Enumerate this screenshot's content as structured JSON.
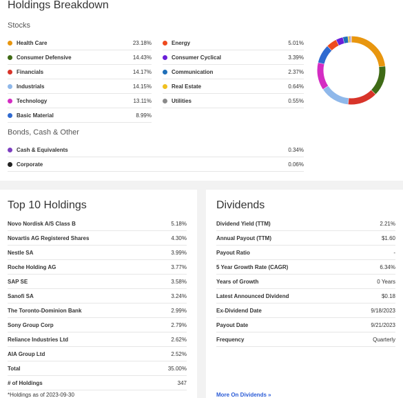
{
  "breakdown": {
    "title": "Holdings Breakdown",
    "stocks_heading": "Stocks",
    "stocks_left": [
      {
        "label": "Health Care",
        "value": "23.18%",
        "color": "#e8960f"
      },
      {
        "label": "Consumer Defensive",
        "value": "14.43%",
        "color": "#3f6b16"
      },
      {
        "label": "Financials",
        "value": "14.17%",
        "color": "#d8342a"
      },
      {
        "label": "Industrials",
        "value": "14.15%",
        "color": "#8fb8ea"
      },
      {
        "label": "Technology",
        "value": "13.11%",
        "color": "#d42cc3"
      },
      {
        "label": "Basic Material",
        "value": "8.99%",
        "color": "#2f6ad0"
      }
    ],
    "stocks_right": [
      {
        "label": "Energy",
        "value": "5.01%",
        "color": "#ee4a1e"
      },
      {
        "label": "Consumer Cyclical",
        "value": "3.39%",
        "color": "#6a1fd8"
      },
      {
        "label": "Communication",
        "value": "2.37%",
        "color": "#1f6fb8"
      },
      {
        "label": "Real Estate",
        "value": "0.64%",
        "color": "#f0c020"
      },
      {
        "label": "Utilities",
        "value": "0.55%",
        "color": "#8a8a8a"
      }
    ],
    "bonds_heading": "Bonds, Cash & Other",
    "bonds": [
      {
        "label": "Cash & Equivalents",
        "value": "0.34%",
        "color": "#7d3fc0"
      },
      {
        "label": "Corporate",
        "value": "0.06%",
        "color": "#222222"
      }
    ]
  },
  "chart_data": {
    "type": "pie",
    "categories": [
      "Health Care",
      "Consumer Defensive",
      "Financials",
      "Industrials",
      "Technology",
      "Basic Material",
      "Energy",
      "Consumer Cyclical",
      "Communication",
      "Real Estate",
      "Utilities",
      "Cash & Equivalents",
      "Corporate"
    ],
    "values": [
      23.18,
      14.43,
      14.17,
      14.15,
      13.11,
      8.99,
      5.01,
      3.39,
      2.37,
      0.64,
      0.55,
      0.34,
      0.06
    ],
    "colors": [
      "#e8960f",
      "#3f6b16",
      "#d8342a",
      "#8fb8ea",
      "#d42cc3",
      "#2f6ad0",
      "#ee4a1e",
      "#6a1fd8",
      "#1f6fb8",
      "#f0c020",
      "#8a8a8a",
      "#7d3fc0",
      "#222222"
    ]
  },
  "top10": {
    "title": "Top 10 Holdings",
    "rows": [
      {
        "label": "Novo Nordisk A/S Class B",
        "value": "5.18%"
      },
      {
        "label": "Novartis AG Registered Shares",
        "value": "4.30%"
      },
      {
        "label": "Nestle SA",
        "value": "3.99%"
      },
      {
        "label": "Roche Holding AG",
        "value": "3.77%"
      },
      {
        "label": "SAP SE",
        "value": "3.58%"
      },
      {
        "label": "Sanofi SA",
        "value": "3.24%"
      },
      {
        "label": "The Toronto-Dominion Bank",
        "value": "2.99%"
      },
      {
        "label": "Sony Group Corp",
        "value": "2.79%"
      },
      {
        "label": "Reliance Industries Ltd",
        "value": "2.62%"
      },
      {
        "label": "AIA Group Ltd",
        "value": "2.52%"
      },
      {
        "label": "Total",
        "value": "35.00%"
      },
      {
        "label": "# of Holdings",
        "value": "347"
      }
    ],
    "note": "*Holdings as of 2023-09-30"
  },
  "dividends": {
    "title": "Dividends",
    "rows": [
      {
        "label": "Dividend Yield (TTM)",
        "value": "2.21%"
      },
      {
        "label": "Annual Payout (TTM)",
        "value": "$1.60"
      },
      {
        "label": "Payout Ratio",
        "value": "-"
      },
      {
        "label": "5 Year Growth Rate (CAGR)",
        "value": "6.34%"
      },
      {
        "label": "Years of Growth",
        "value": "0 Years"
      },
      {
        "label": "Latest Announced Dividend",
        "value": "$0.18"
      },
      {
        "label": "Ex-Dividend Date",
        "value": "9/18/2023"
      },
      {
        "label": "Payout Date",
        "value": "9/21/2023"
      },
      {
        "label": "Frequency",
        "value": "Quarterly"
      }
    ],
    "link": "More On Dividends »"
  }
}
